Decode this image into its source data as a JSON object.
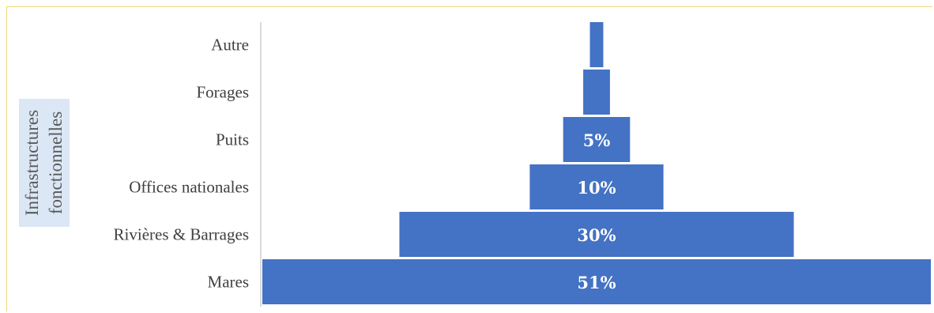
{
  "chart_data": {
    "type": "bar",
    "orientation": "horizontal-centered",
    "ylabel": "Infrastructures fonctionnelles",
    "ylabel_lines": [
      "Infrastructures",
      "fonctionnelles"
    ],
    "categories": [
      "Autre",
      "Forages",
      "Puits",
      "Offices nationales",
      "Rivières & Barrages",
      "Mares"
    ],
    "values": [
      2,
      4,
      10,
      20,
      59,
      100
    ],
    "data_labels": [
      "",
      "",
      "5%",
      "10%",
      "30%",
      "51%"
    ],
    "colors": {
      "bar": "#4472c4",
      "axis": "#d9d9d9",
      "frame": "#f2d679"
    }
  }
}
